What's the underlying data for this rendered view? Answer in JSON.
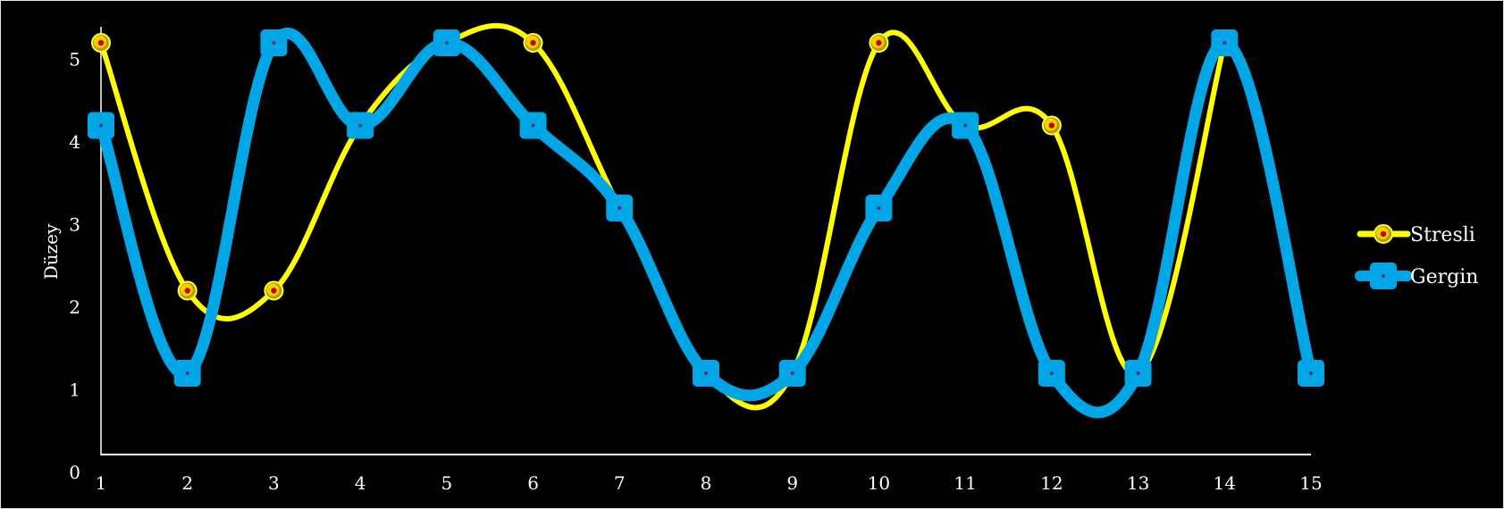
{
  "chart_data": {
    "type": "line",
    "smooth": true,
    "x": [
      1,
      2,
      3,
      4,
      5,
      6,
      7,
      8,
      9,
      10,
      11,
      12,
      13,
      14,
      15
    ],
    "xlabel": "",
    "ylabel": "Düzey",
    "ylim": [
      0,
      5
    ],
    "yticks": [
      0,
      1,
      2,
      3,
      4,
      5
    ],
    "grid": false,
    "legend_position": "right",
    "series": [
      {
        "name": "Stresli",
        "color": "#ffff00",
        "marker": "circle",
        "marker_color": "#e8c000",
        "marker_dot": "#cc0000",
        "values": [
          5.2,
          2.2,
          2.2,
          4.2,
          5.2,
          5.2,
          3.2,
          1.2,
          1.2,
          5.2,
          4.2,
          4.2,
          1.2,
          5.2,
          null
        ]
      },
      {
        "name": "Gergin",
        "color": "#00a6e6",
        "marker": "square",
        "marker_color": "#00a6e6",
        "values": [
          4.2,
          1.2,
          5.2,
          4.2,
          5.2,
          4.2,
          3.2,
          1.2,
          1.2,
          3.2,
          4.2,
          1.2,
          1.2,
          5.2,
          1.2
        ]
      }
    ]
  }
}
